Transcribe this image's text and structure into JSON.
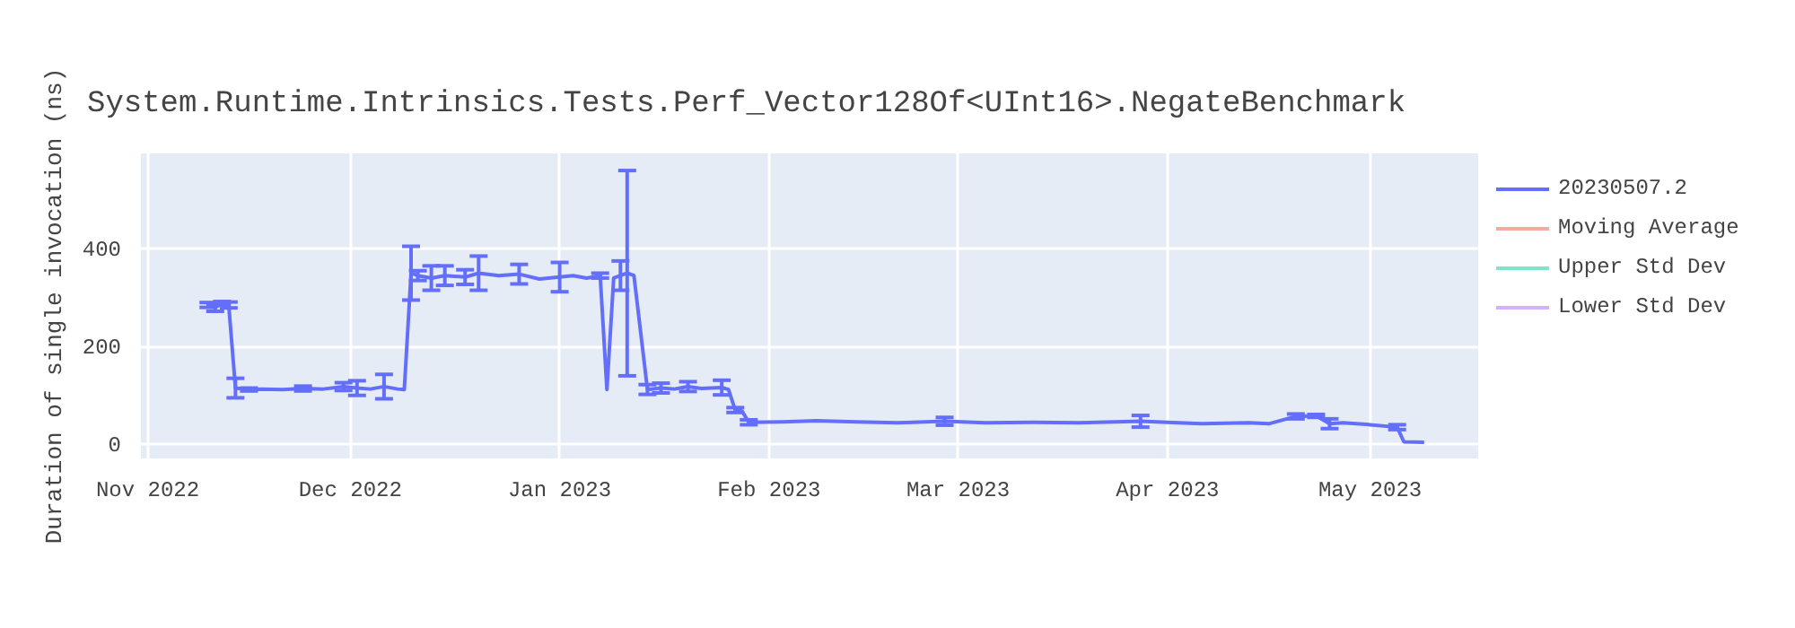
{
  "chart_data": {
    "type": "line",
    "title": "System.Runtime.Intrinsics.Tests.Perf_Vector128Of<UInt16>.NegateBenchmark",
    "ylabel": "Duration of single invocation (ns)",
    "x": [
      "2022-11-10",
      "2022-11-11",
      "2022-11-12",
      "2022-11-13",
      "2022-11-14",
      "2022-11-16",
      "2022-11-18",
      "2022-11-21",
      "2022-11-24",
      "2022-11-27",
      "2022-11-30",
      "2022-12-02",
      "2022-12-04",
      "2022-12-06",
      "2022-12-08",
      "2022-12-09",
      "2022-12-10",
      "2022-12-11",
      "2022-12-13",
      "2022-12-15",
      "2022-12-18",
      "2022-12-20",
      "2022-12-23",
      "2022-12-26",
      "2022-12-29",
      "2023-01-01",
      "2023-01-03",
      "2023-01-05",
      "2023-01-07",
      "2023-01-08",
      "2023-01-09",
      "2023-01-10",
      "2023-01-11",
      "2023-01-12",
      "2023-01-14",
      "2023-01-16",
      "2023-01-18",
      "2023-01-20",
      "2023-01-22",
      "2023-01-25",
      "2023-01-26",
      "2023-01-27",
      "2023-01-28",
      "2023-01-29",
      "2023-02-03",
      "2023-02-08",
      "2023-02-14",
      "2023-02-20",
      "2023-02-27",
      "2023-03-05",
      "2023-03-12",
      "2023-03-19",
      "2023-03-28",
      "2023-04-01",
      "2023-04-06",
      "2023-04-13",
      "2023-04-16",
      "2023-04-20",
      "2023-04-23",
      "2023-04-25",
      "2023-04-27",
      "2023-05-01",
      "2023-05-05",
      "2023-05-06",
      "2023-05-09"
    ],
    "series": [
      {
        "name": "20230507.2",
        "color": "#636efa",
        "values": [
          285,
          280,
          288,
          285,
          115,
          112,
          113,
          112,
          114,
          113,
          118,
          115,
          113,
          118,
          113,
          112,
          350,
          345,
          340,
          345,
          342,
          350,
          345,
          348,
          338,
          342,
          345,
          340,
          345,
          112,
          340,
          345,
          350,
          345,
          112,
          115,
          113,
          118,
          114,
          116,
          112,
          70,
          68,
          45,
          46,
          48,
          46,
          44,
          47,
          44,
          45,
          44,
          47,
          45,
          42,
          44,
          42,
          57,
          58,
          42,
          44,
          40,
          35,
          5,
          4
        ],
        "errors": [
          5,
          8,
          4,
          6,
          20,
          3,
          null,
          null,
          5,
          null,
          8,
          15,
          null,
          25,
          null,
          null,
          55,
          10,
          25,
          20,
          15,
          35,
          null,
          20,
          null,
          30,
          null,
          null,
          5,
          null,
          null,
          30,
          210,
          null,
          10,
          10,
          null,
          10,
          null,
          15,
          null,
          5,
          null,
          5,
          null,
          null,
          null,
          null,
          8,
          null,
          null,
          null,
          12,
          null,
          null,
          null,
          null,
          5,
          3,
          10,
          null,
          null,
          5,
          null,
          null
        ]
      },
      {
        "name": "Moving Average",
        "color": "#ef553b",
        "values": [
          null,
          null,
          null,
          null,
          null,
          null,
          null,
          null,
          null,
          null,
          null,
          null,
          null,
          null,
          null,
          null,
          null,
          null,
          null,
          null,
          null,
          null,
          null,
          null,
          null,
          null,
          null,
          null,
          null,
          null,
          null,
          null,
          null,
          null,
          null,
          null,
          null,
          null,
          null,
          null,
          null,
          null,
          null,
          null,
          null,
          null,
          null,
          null,
          null,
          null,
          null,
          null,
          null,
          null,
          null,
          null,
          null,
          null,
          null,
          null,
          null,
          null,
          null,
          null,
          null
        ]
      },
      {
        "name": "Upper Std Dev",
        "color": "#00cc96",
        "values": [
          null,
          null,
          null,
          null,
          null,
          null,
          null,
          null,
          null,
          null,
          null,
          null,
          null,
          null,
          null,
          null,
          null,
          null,
          null,
          null,
          null,
          null,
          null,
          null,
          null,
          null,
          null,
          null,
          null,
          null,
          null,
          null,
          null,
          null,
          null,
          null,
          null,
          null,
          null,
          null,
          null,
          null,
          null,
          null,
          null,
          null,
          null,
          null,
          null,
          null,
          null,
          null,
          null,
          null,
          null,
          null,
          null,
          null,
          null,
          null,
          null,
          null,
          null,
          null,
          null
        ]
      },
      {
        "name": "Lower Std Dev",
        "color": "#ab63fa",
        "values": [
          null,
          null,
          null,
          null,
          null,
          null,
          null,
          null,
          null,
          null,
          null,
          null,
          null,
          null,
          null,
          null,
          null,
          null,
          null,
          null,
          null,
          null,
          null,
          null,
          null,
          null,
          null,
          null,
          null,
          null,
          null,
          null,
          null,
          null,
          null,
          null,
          null,
          null,
          null,
          null,
          null,
          null,
          null,
          null,
          null,
          null,
          null,
          null,
          null,
          null,
          null,
          null,
          null,
          null,
          null,
          null,
          null,
          null,
          null,
          null,
          null,
          null,
          null,
          null,
          null
        ]
      }
    ],
    "xlim": [
      "2022-10-31",
      "2023-05-17"
    ],
    "xticks": [
      {
        "value": "2022-11-01",
        "label": "Nov 2022"
      },
      {
        "value": "2022-12-01",
        "label": "Dec 2022"
      },
      {
        "value": "2023-01-01",
        "label": "Jan 2023"
      },
      {
        "value": "2023-02-01",
        "label": "Feb 2023"
      },
      {
        "value": "2023-03-01",
        "label": "Mar 2023"
      },
      {
        "value": "2023-04-01",
        "label": "Apr 2023"
      },
      {
        "value": "2023-05-01",
        "label": "May 2023"
      }
    ],
    "ylim": [
      -29,
      595
    ],
    "yticks": [
      0,
      200,
      400
    ],
    "grid": true,
    "legend": "right",
    "marker": "none",
    "line_style": "solid"
  }
}
